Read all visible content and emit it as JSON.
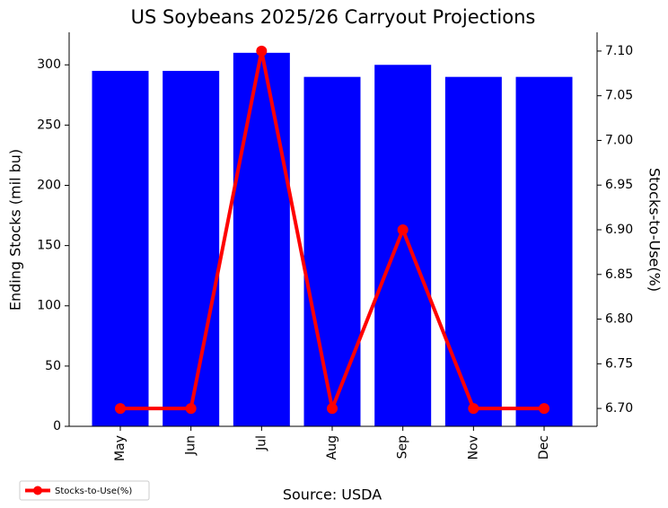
{
  "chart_data": {
    "type": "bar_line",
    "title": "US Soybeans 2025/26 Carryout Projections",
    "ylabel": "Ending Stocks (mil bu)",
    "y2label": "Stocks-to-Use(%)",
    "source": "Source: USDA",
    "categories": [
      "May",
      "Jun",
      "Jul",
      "Aug",
      "Sep",
      "Nov",
      "Dec"
    ],
    "series": [
      {
        "type": "bar",
        "color": "#0000ff",
        "values": [
          295,
          295,
          310,
          290,
          300,
          290,
          290
        ]
      },
      {
        "type": "line",
        "name": "Stocks-to-Use(%)",
        "color": "#ff0000",
        "axis": "y2",
        "values": [
          6.7,
          6.7,
          7.1,
          6.7,
          6.9,
          6.7,
          6.7
        ]
      }
    ],
    "ylim": [
      0,
      327
    ],
    "yticks": [
      0,
      50,
      100,
      150,
      200,
      250,
      300
    ],
    "y2lim": [
      6.68,
      7.121
    ],
    "y2ticks": [
      {
        "value": 6.7,
        "label": "6.70"
      },
      {
        "value": 6.75,
        "label": "6.75"
      },
      {
        "value": 6.8,
        "label": "6.80"
      },
      {
        "value": 6.85,
        "label": "6.85"
      },
      {
        "value": 6.9,
        "label": "6.90"
      },
      {
        "value": 6.95,
        "label": "6.95"
      },
      {
        "value": 7.0,
        "label": "7.00"
      },
      {
        "value": 7.05,
        "label": "7.05"
      },
      {
        "value": 7.1,
        "label": "7.10"
      }
    ],
    "legend": "lower left"
  }
}
